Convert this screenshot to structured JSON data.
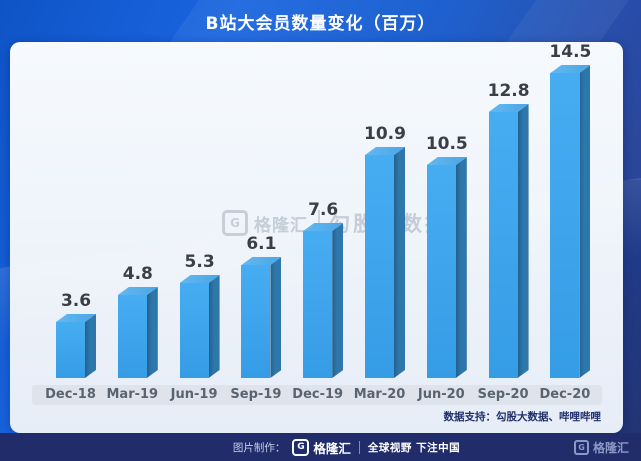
{
  "header": {
    "title": "B站大会员数量变化（百万）"
  },
  "chart_data": {
    "type": "bar",
    "title": "B站大会员数量变化（百万）",
    "unit": "百万",
    "categories": [
      "Dec-18",
      "Mar-19",
      "Jun-19",
      "Sep-19",
      "Dec-19",
      "Mar-20",
      "Jun-20",
      "Sep-20",
      "Dec-20"
    ],
    "values": [
      3.6,
      4.8,
      5.3,
      6.1,
      7.6,
      10.9,
      10.5,
      12.8,
      14.5
    ],
    "xlabel": "",
    "ylabel": "",
    "ylim": [
      0,
      15
    ],
    "grid": false,
    "legend": "none",
    "colors": {
      "front": "#359ce6",
      "front_light": "#47adf2",
      "side": "#2e77ab",
      "side_dark": "#23608e",
      "top": "#4aa6e6",
      "top_light": "#63b8f0",
      "label": "#3b3e44"
    }
  },
  "watermark": {
    "logo_letter": "G",
    "brand": "格隆汇",
    "product": "勾股大数据"
  },
  "source": {
    "text": "数据支持：勾股大数据、哔哩哔哩"
  },
  "footer": {
    "made_by_label": "图片制作：",
    "logo_letter": "G",
    "brand": "格隆汇",
    "slogan": "全球视野 下注中国",
    "corner_brand": "格隆汇"
  }
}
